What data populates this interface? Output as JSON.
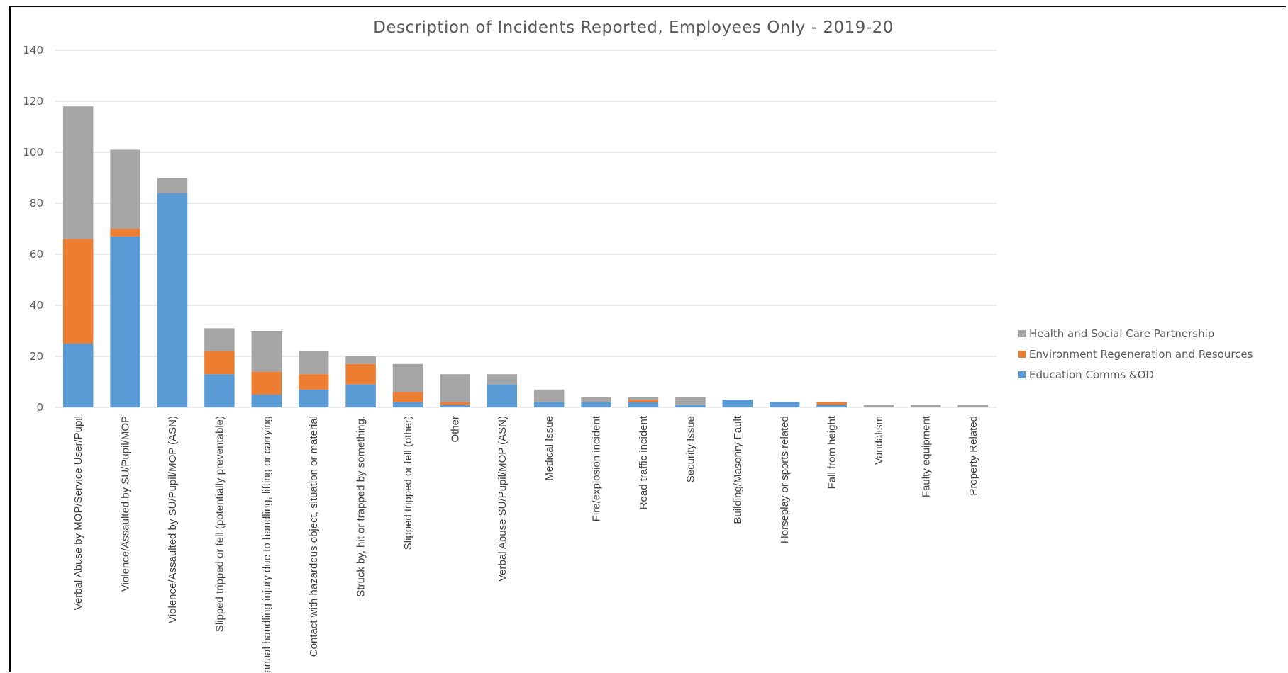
{
  "chart_data": {
    "type": "bar",
    "stacked": true,
    "title": "Description of Incidents Reported, Employees Only - 2019-20",
    "xlabel": "",
    "ylabel": "",
    "ylim": [
      0,
      140
    ],
    "y_ticks": [
      0,
      20,
      40,
      60,
      80,
      100,
      120,
      140
    ],
    "grid": true,
    "legend_position": "right",
    "categories": [
      "Verbal Abuse by MOP/Service User/Pupil",
      "Violence/Assaulted by SU/Pupil/MOP",
      "Violence/Assaulted by SU/Pupil/MOP (ASN)",
      "Slipped tripped or fell (potentially preventable)",
      "Manual handling injury due to handling, lifting or carrying",
      "Contact with hazardous object, situation or material",
      "Struck by, hit or trapped by something.",
      "Slipped tripped or fell (other)",
      "Other",
      "Verbal Abuse SU/Pupil/MOP (ASN)",
      "Medical Issue",
      "Fire/explosion incident",
      "Road traffic incident",
      "Security Issue",
      "Building/Masonry Fault",
      "Horseplay or sports related",
      "Fall from height",
      "Vandalism",
      "Faulty equipment",
      "Property Related"
    ],
    "series": [
      {
        "name": "Education Comms &OD",
        "color": "#5b9bd5",
        "values": [
          25,
          67,
          84,
          13,
          5,
          7,
          9,
          2,
          1,
          9,
          2,
          2,
          2,
          1,
          3,
          2,
          1,
          0,
          0,
          0
        ]
      },
      {
        "name": "Environment Regeneration and Resources",
        "color": "#ed7d31",
        "values": [
          41,
          3,
          0,
          9,
          9,
          6,
          8,
          4,
          1,
          0,
          0,
          0,
          1,
          0,
          0,
          0,
          1,
          0,
          0,
          0
        ]
      },
      {
        "name": "Health and Social Care Partnership",
        "color": "#a5a5a5",
        "values": [
          52,
          31,
          6,
          9,
          16,
          9,
          3,
          11,
          11,
          4,
          5,
          2,
          1,
          3,
          0,
          0,
          0,
          1,
          1,
          1
        ]
      }
    ],
    "legend_order": [
      "Health and Social Care Partnership",
      "Environment Regeneration and Resources",
      "Education Comms &OD"
    ]
  },
  "colors": {
    "gridline": "#d9d9d9",
    "axis": "#d9d9d9"
  }
}
